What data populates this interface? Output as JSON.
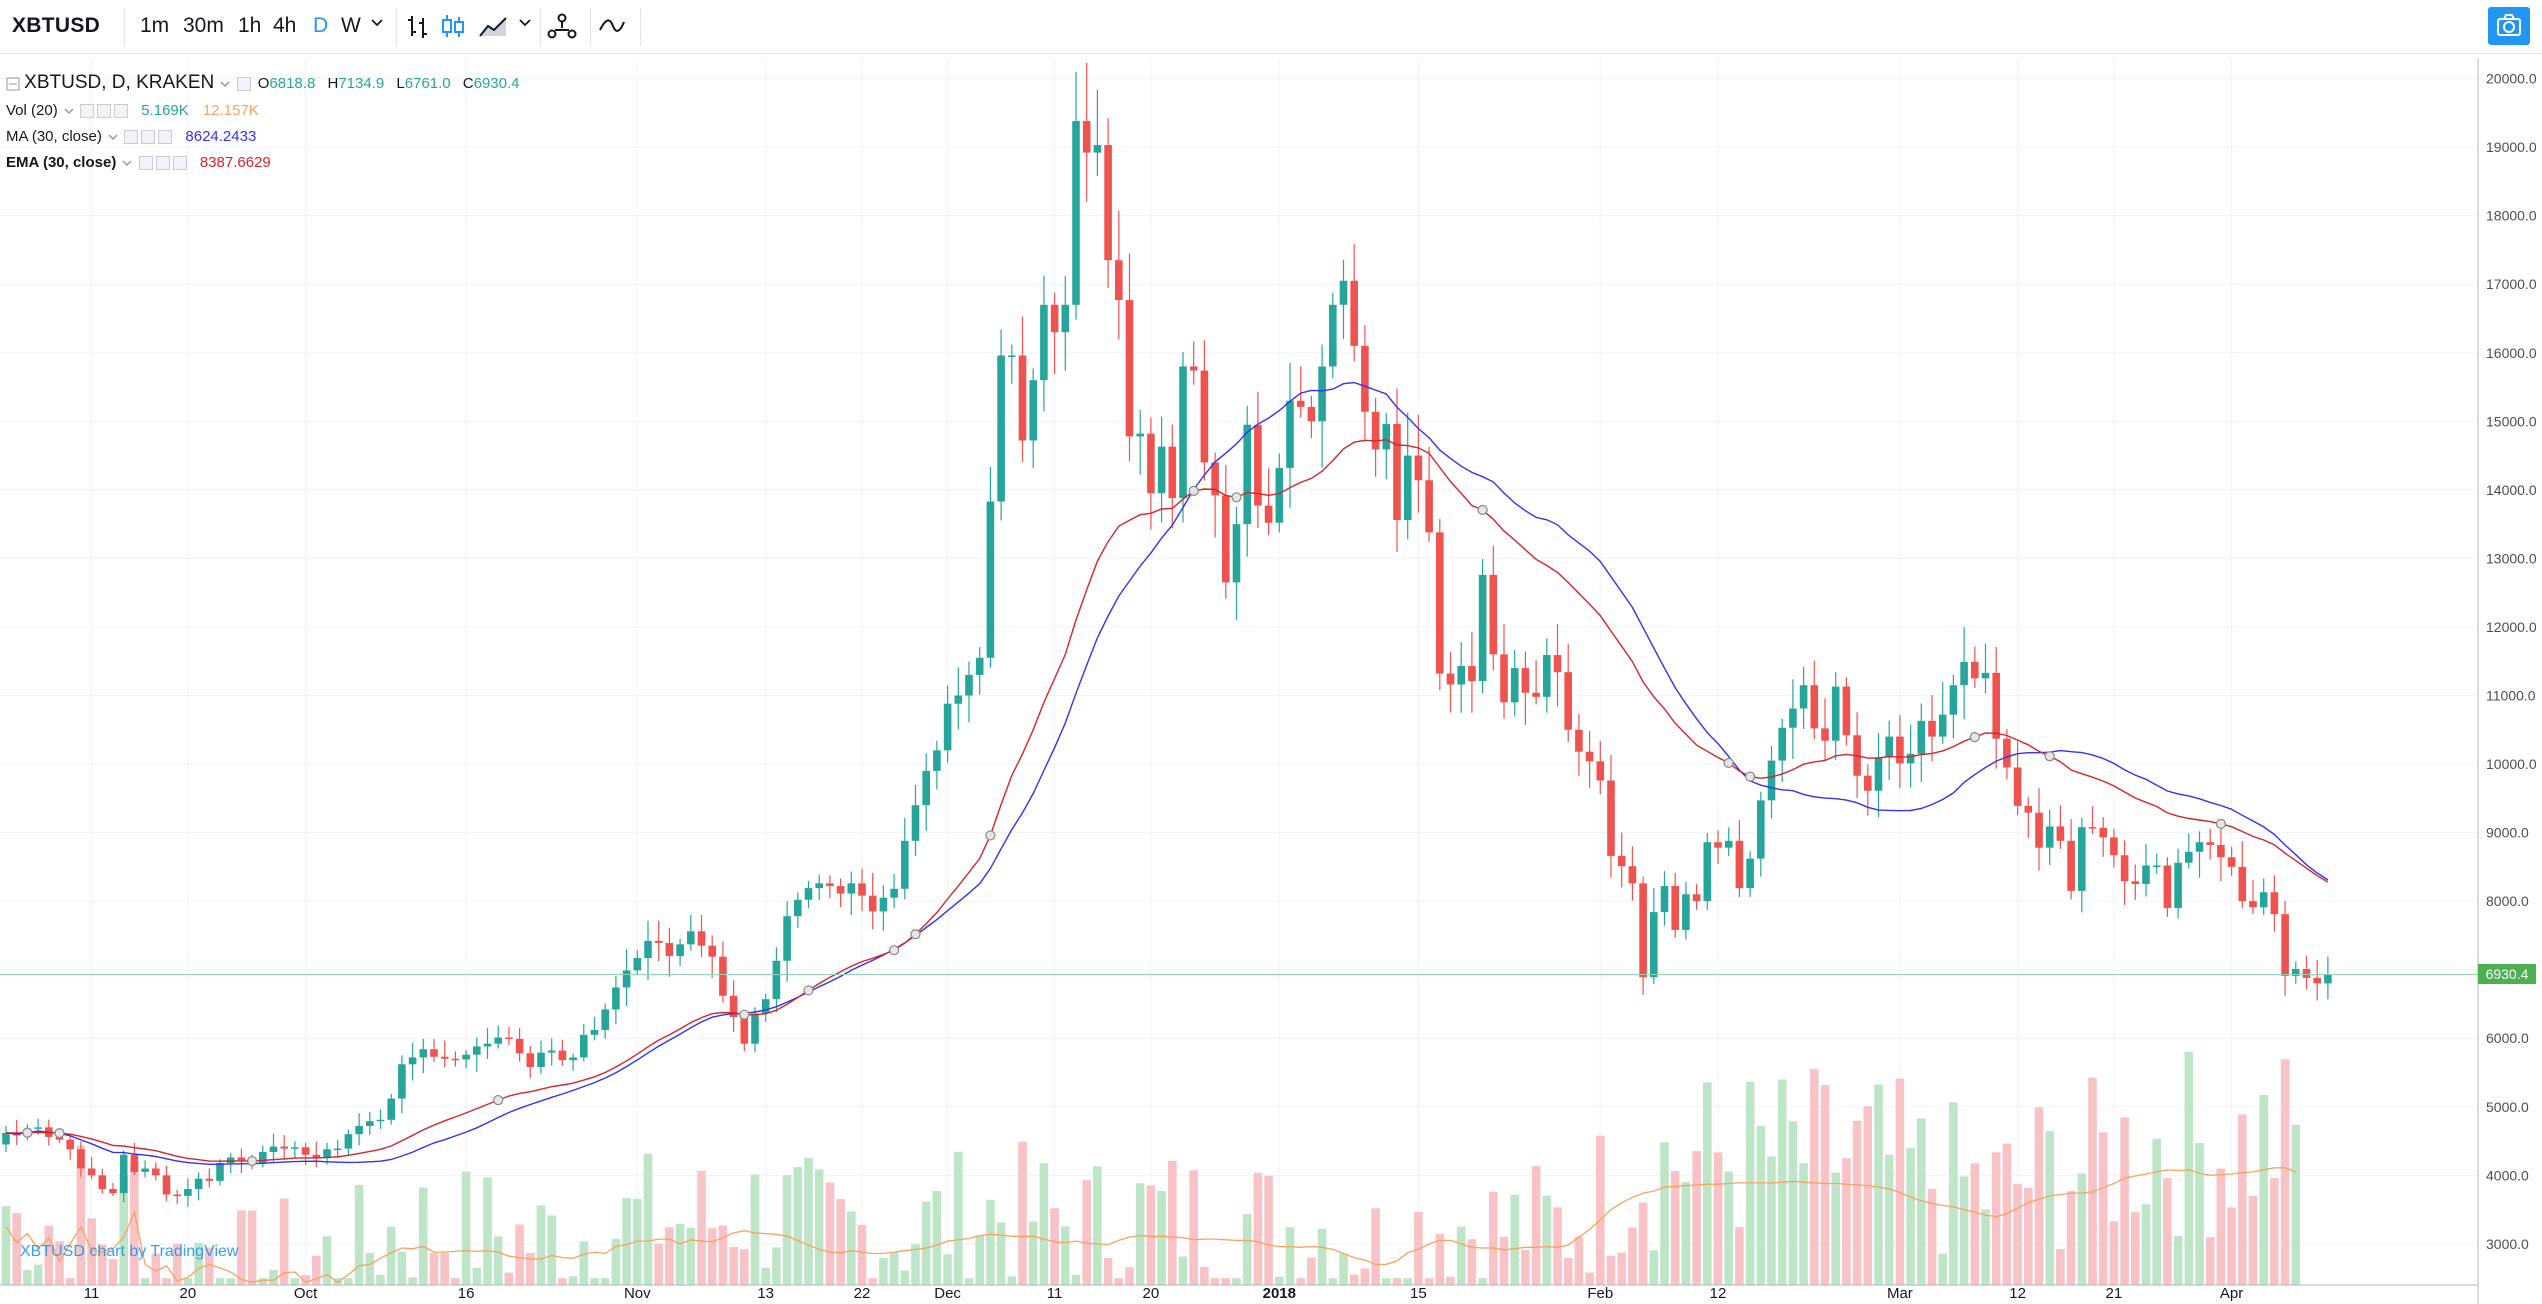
{
  "toolbar": {
    "symbol": "XBTUSD",
    "intervals": [
      "1m",
      "30m",
      "1h",
      "4h",
      "D",
      "W"
    ],
    "active_interval": "D",
    "camera_icon": "camera-icon"
  },
  "legend": {
    "main": {
      "title": "XBTUSD, D, KRAKEN",
      "o_label": "O",
      "o": "6818.8",
      "h_label": "H",
      "h": "7134.9",
      "l_label": "L",
      "l": "6761.0",
      "c_label": "C",
      "c": "6930.4"
    },
    "vol": {
      "title": "Vol (20)",
      "v1": "5.169K",
      "v2": "12.157K"
    },
    "ma": {
      "title": "MA (30, close)",
      "value": "8624.2433"
    },
    "ema": {
      "title": "EMA (30, close)",
      "value": "8387.6629"
    }
  },
  "watermark": "XBTUSD chart by TradingView",
  "colors": {
    "up": "#26a69a",
    "down": "#ef5350",
    "up_vol": "#bfe5c8",
    "down_vol": "#f8c3c6",
    "ma": "#3232f0",
    "ema": "#d2262a",
    "vol_ma": "#f8a35c",
    "accent": "#2196f3",
    "last": "#4caf50"
  },
  "chart_data": {
    "type": "candlestick",
    "title": "XBTUSD, D, KRAKEN",
    "last_price": "6930.4",
    "y_ticks": [
      "20000.0",
      "19000.0",
      "18000.0",
      "17000.0",
      "16000.0",
      "15000.0",
      "14000.0",
      "13000.0",
      "12000.0",
      "11000.0",
      "10000.0",
      "9000.0",
      "8000.0",
      "7000.0",
      "6000.0",
      "5000.0",
      "4000.0",
      "3000.0"
    ],
    "ylim": [
      2400,
      20300
    ],
    "x_labels": [
      {
        "day": 8,
        "label": "11"
      },
      {
        "day": 17,
        "label": "20"
      },
      {
        "day": 28,
        "label": "Oct"
      },
      {
        "day": 43,
        "label": "16"
      },
      {
        "day": 59,
        "label": "Nov"
      },
      {
        "day": 71,
        "label": "13"
      },
      {
        "day": 80,
        "label": "22"
      },
      {
        "day": 88,
        "label": "Dec"
      },
      {
        "day": 98,
        "label": "11"
      },
      {
        "day": 107,
        "label": "20"
      },
      {
        "day": 119,
        "label": "2018"
      },
      {
        "day": 132,
        "label": "15"
      },
      {
        "day": 149,
        "label": "Feb"
      },
      {
        "day": 160,
        "label": "12"
      },
      {
        "day": 177,
        "label": "Mar"
      },
      {
        "day": 188,
        "label": "12"
      },
      {
        "day": 197,
        "label": "21"
      },
      {
        "day": 208,
        "label": "Apr"
      }
    ],
    "close": [
      4620,
      4580,
      4680,
      4700,
      4560,
      4520,
      4380,
      4100,
      4000,
      3800,
      3740,
      4300,
      4050,
      4100,
      4000,
      3720,
      3700,
      3800,
      3950,
      3920,
      4180,
      4260,
      4220,
      4180,
      4340,
      4420,
      4390,
      4410,
      4300,
      4250,
      4380,
      4390,
      4600,
      4720,
      4790,
      4810,
      5120,
      5620,
      5720,
      5840,
      5730,
      5700,
      5690,
      5760,
      5880,
      5920,
      6010,
      5990,
      5780,
      5580,
      5790,
      5820,
      5680,
      5720,
      6050,
      6120,
      6420,
      6740,
      6990,
      7170,
      7420,
      7390,
      7200,
      7370,
      7560,
      7350,
      7190,
      6620,
      6310,
      5920,
      6360,
      6570,
      7130,
      7780,
      8020,
      8190,
      8260,
      8220,
      8110,
      8260,
      8080,
      7850,
      8050,
      8180,
      8880,
      9400,
      9900,
      10200,
      10880,
      11000,
      11300,
      11550,
      13830,
      15960,
      15960,
      14720,
      15600,
      16700,
      16300,
      16700,
      19380,
      18920,
      19030,
      17350,
      16770,
      14780,
      14820,
      13950,
      14630,
      13880,
      15800,
      15740,
      14400,
      13920,
      12650,
      13500,
      14950,
      13770,
      13520,
      14320,
      15300,
      15210,
      15000,
      15800,
      16700,
      17050,
      16100,
      15140,
      14590,
      14960,
      13560,
      14500,
      14140,
      13380,
      11320,
      11160,
      11430,
      11210,
      12760,
      11600,
      10900,
      11400,
      11040,
      10980,
      11590,
      11340,
      10500,
      10180,
      10040,
      9760,
      8660,
      8510,
      8260,
      6890,
      7840,
      8220,
      7580,
      8100,
      8000,
      8860,
      8780,
      8880,
      8190,
      8620,
      9470,
      10050,
      10530,
      10810,
      11150,
      10520,
      10340,
      11130,
      10420,
      9830,
      9610,
      10100,
      10400,
      10010,
      10150,
      10630,
      10400,
      10720,
      11150,
      11490,
      11250,
      11330,
      10370,
      9950,
      9390,
      9290,
      8780,
      9090,
      8880,
      8150,
      9080,
      9070,
      8930,
      8670,
      8290,
      8250,
      8520,
      8520,
      7900,
      8560,
      8720,
      8860,
      8820,
      8640,
      8500,
      8000,
      7910,
      8130,
      7810,
      6910,
      7010,
      6880,
      6800,
      6930
    ],
    "open_first": 4450,
    "vol_vals": [
      3250,
      3020,
      3150,
      2930,
      3080,
      2750,
      3000,
      3250,
      2900,
      2880,
      2930,
      3100,
      3460,
      2700,
      2600,
      2680,
      2460,
      2510,
      2640,
      2700,
      2650,
      2590,
      2480,
      2440,
      2470,
      2470,
      2580,
      2590,
      2440,
      2490,
      2550,
      2440,
      2550,
      2680,
      2700,
      2790,
      2870,
      2940,
      2930,
      2960,
      2880,
      2880,
      2890,
      2900,
      2890,
      2900,
      2880,
      2820,
      2800,
      2780,
      2780,
      2830,
      2800,
      2790,
      2850,
      2880,
      2860,
      2960,
      2990,
      3040,
      3040,
      3070,
      3070,
      3000,
      3060,
      3040,
      3030,
      3090,
      3160,
      3190,
      3160,
      3150,
      3140,
      3110,
      3050,
      2980,
      2920,
      2880,
      2870,
      2900,
      2880,
      2860,
      2860,
      2880,
      2900,
      2920,
      2940,
      2980,
      3040,
      3060,
      3080,
      3120,
      3140,
      3130,
      3110,
      3110,
      3110,
      3070,
      3030,
      3020,
      3040,
      3010,
      3000,
      2990,
      3050,
      3100,
      3120,
      3110,
      3110,
      3100,
      3090,
      3060,
      3070,
      3070,
      3060,
      3050,
      3050,
      3030,
      2980,
      2960,
      2960,
      2950,
      2960,
      2950,
      2920,
      2860,
      2800,
      2760,
      2700,
      2700,
      2750,
      2870,
      2920,
      3000,
      3050,
      3050,
      3000,
      2950,
      2940,
      2940,
      2910,
      2930,
      2950,
      2950,
      2960,
      2950,
      2980,
      3100,
      3210,
      3350,
      3500,
      3600,
      3680,
      3740,
      3770,
      3830,
      3840,
      3850,
      3860,
      3870,
      3870,
      3880,
      3890,
      3890,
      3890,
      3890,
      3900,
      3910,
      3900,
      3890,
      3880,
      3880,
      3870,
      3860,
      3850,
      3830,
      3800,
      3750,
      3680,
      3630,
      3590,
      3560,
      3540,
      3500,
      3460,
      3420,
      3400,
      3440,
      3520,
      3600,
      3650,
      3700,
      3720,
      3740,
      3740,
      3760,
      3820,
      3880,
      3960,
      3990,
      4020,
      4050,
      4080,
      4070,
      4080,
      4030,
      4000,
      4010,
      4020,
      4040,
      4050,
      4080,
      4110,
      4110,
      4050
    ],
    "series": [
      {
        "name": "MA (30, close)",
        "last": "8624.2433"
      },
      {
        "name": "EMA (30, close)",
        "last": "8387.6629"
      },
      {
        "name": "Vol (20)",
        "last": "5.169K"
      }
    ]
  }
}
